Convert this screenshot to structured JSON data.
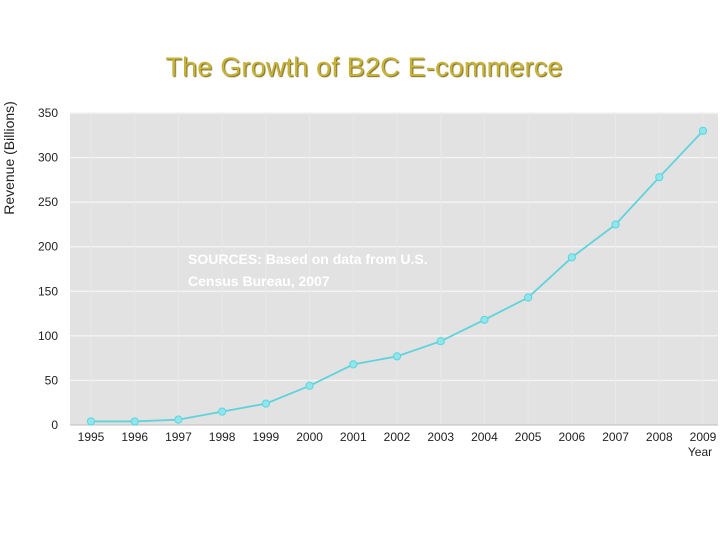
{
  "slide": {
    "title": "The Growth of B2C E-commerce"
  },
  "chart_data": {
    "type": "line",
    "title": "The Growth of B2C E-commerce",
    "xlabel": "Year",
    "ylabel": "Revenue (Billions)",
    "x": [
      "1995",
      "1996",
      "1997",
      "1998",
      "1999",
      "2000",
      "2001",
      "2002",
      "2003",
      "2004",
      "2005",
      "2006",
      "2007",
      "2008",
      "2009"
    ],
    "series": [
      {
        "values": [
          4,
          4,
          6,
          15,
          24,
          44,
          68,
          77,
          94,
          118,
          143,
          188,
          225,
          278,
          330
        ]
      }
    ],
    "ylim": [
      0,
      350
    ],
    "yticks": [
      "0",
      "50",
      "100",
      "150",
      "200",
      "250",
      "300",
      "350"
    ],
    "grid": true,
    "annotation": [
      "SOURCES: Based on data from U.S.",
      "Census Bureau, 2007"
    ],
    "colors": {
      "line": "#5fd3dc",
      "marker": "#8fe7ee",
      "plot_background": "#e2e2e2",
      "grid": "#f4f4f4",
      "title": "#c8b33a"
    }
  }
}
